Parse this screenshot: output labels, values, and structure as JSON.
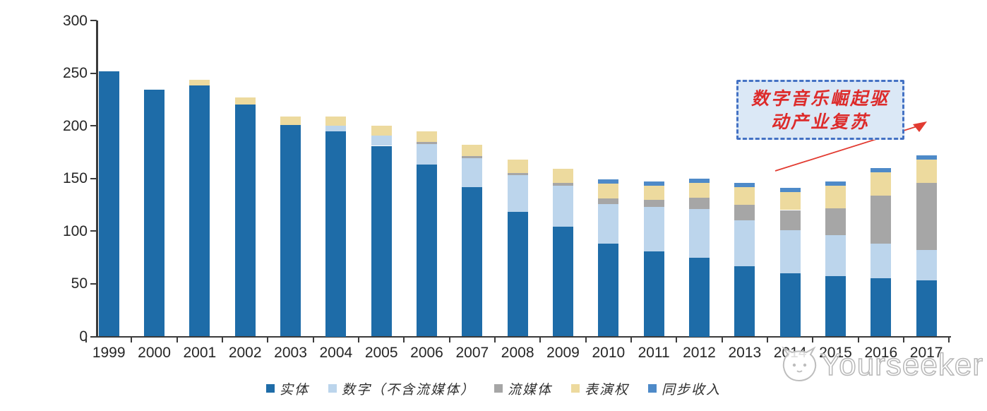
{
  "annotation": {
    "line1": "数字音乐崛起驱",
    "line2": "动产业复苏"
  },
  "watermark": {
    "text": "Yourseeker"
  },
  "colors": {
    "physical": "#1e6ca8",
    "digital": "#bcd5ec",
    "streaming": "#a6a6a6",
    "performance": "#eddA9e",
    "sync": "#4e8ac8",
    "axis": "#3a3a3a",
    "callout_border": "#4472c4",
    "callout_fill": "#dbe8f6",
    "callout_text": "#dd2b2b",
    "arrow": "#e23b31"
  },
  "chart_data": {
    "type": "bar",
    "stacked": true,
    "title": "",
    "xlabel": "",
    "ylabel": "",
    "ylim": [
      0,
      300
    ],
    "y_ticks": [
      0,
      50,
      100,
      150,
      200,
      250,
      300
    ],
    "grid": false,
    "legend_position": "bottom",
    "categories": [
      "1999",
      "2000",
      "2001",
      "2002",
      "2003",
      "2004",
      "2005",
      "2006",
      "2007",
      "2008",
      "2009",
      "2010",
      "2011",
      "2012",
      "2013",
      "2014",
      "2015",
      "2016",
      "2017"
    ],
    "series": [
      {
        "name": "实体",
        "color": "#1e6ca8",
        "values": [
          252,
          234,
          238,
          220,
          201,
          195,
          181,
          163,
          142,
          118,
          104,
          88,
          81,
          75,
          67,
          60,
          57,
          55,
          53
        ]
      },
      {
        "name": "数字（不含流媒体）",
        "color": "#bcd5ec",
        "values": [
          0,
          0,
          0,
          0,
          0,
          5,
          10,
          20,
          27,
          35,
          39,
          38,
          42,
          46,
          43,
          41,
          39,
          33,
          29
        ]
      },
      {
        "name": "流媒体",
        "color": "#a6a6a6",
        "values": [
          0,
          0,
          0,
          0,
          0,
          0,
          0,
          2,
          2,
          2,
          3,
          5,
          7,
          11,
          15,
          19,
          26,
          46,
          64
        ]
      },
      {
        "name": "表演权",
        "color": "#edda9e",
        "values": [
          0,
          0,
          6,
          7,
          8,
          9,
          9,
          10,
          11,
          13,
          13,
          14,
          13,
          14,
          17,
          17,
          21,
          22,
          22
        ]
      },
      {
        "name": "同步收入",
        "color": "#4e8ac8",
        "values": [
          0,
          0,
          0,
          0,
          0,
          0,
          0,
          0,
          0,
          0,
          0,
          4,
          4,
          4,
          4,
          4,
          4,
          4,
          4
        ]
      }
    ],
    "totals": [
      252,
      234,
      244,
      227,
      209,
      209,
      200,
      195,
      182,
      168,
      159,
      149,
      147,
      150,
      146,
      141,
      147,
      160,
      172
    ]
  }
}
